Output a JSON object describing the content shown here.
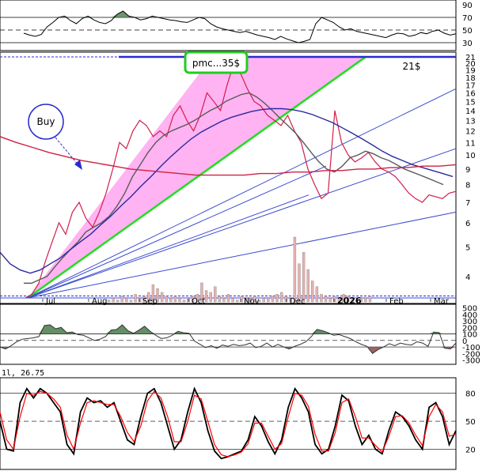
{
  "annotations": {
    "buy_label": "Buy",
    "target_label": "pmc...35$",
    "level_label": "21$",
    "stoch_label": "1l, 26.75"
  },
  "chart_data": [
    {
      "type": "line",
      "panel": "rsi",
      "y_ticks": [
        30,
        50,
        70,
        90
      ],
      "ylim": [
        20,
        95
      ],
      "reference_lines": [
        30,
        50,
        70
      ],
      "values": [
        45,
        42,
        40,
        43,
        55,
        62,
        70,
        72,
        65,
        60,
        68,
        72,
        66,
        62,
        60,
        65,
        75,
        80,
        72,
        70,
        66,
        68,
        72,
        70,
        68,
        66,
        65,
        63,
        62,
        66,
        70,
        68,
        60,
        55,
        52,
        50,
        48,
        46,
        48,
        45,
        42,
        40,
        38,
        35,
        40,
        36,
        33,
        30,
        32,
        35,
        60,
        70,
        66,
        62,
        55,
        50,
        52,
        48,
        46,
        44,
        42,
        40,
        38,
        42,
        45,
        44,
        40,
        42,
        46,
        44,
        48,
        50,
        45,
        42,
        44
      ]
    },
    {
      "type": "line",
      "panel": "price",
      "scale": "log",
      "y_ticks": [
        4,
        5,
        6,
        7,
        8,
        9,
        10,
        11,
        12,
        13,
        14,
        15,
        16,
        17,
        18,
        19,
        20,
        21
      ],
      "ylim": [
        3.3,
        21.5
      ],
      "x_labels": [
        "Jul",
        "Aug",
        "Sep",
        "Oct",
        "Nov",
        "Dec",
        "2026",
        "Feb",
        "Mar"
      ],
      "series": [
        {
          "color": "#d21e4b",
          "values": [
            3.4,
            3.5,
            3.8,
            4.5,
            5.2,
            6.0,
            5.5,
            6.5,
            7.0,
            6.2,
            5.8,
            6.5,
            7.5,
            9.0,
            11.0,
            10.5,
            12.0,
            13.0,
            12.5,
            11.5,
            12.0,
            11.5,
            13.5,
            14.5,
            13.0,
            12.0,
            13.5,
            16.0,
            15.0,
            14.0,
            17.0,
            20.0,
            18.5,
            16.5,
            15.0,
            14.5,
            13.5,
            13.0,
            12.5,
            13.5,
            12.0,
            11.0,
            9.0,
            8.0,
            7.2,
            7.5,
            14.0,
            11.0,
            10.0,
            9.5,
            9.8,
            10.2,
            9.5,
            9.0,
            8.8,
            8.5,
            8.0,
            7.5,
            7.2,
            7.0,
            7.4,
            7.3,
            7.2,
            7.5,
            7.6
          ]
        },
        {
          "color": "#5a5a5a",
          "values": [
            3.8,
            3.8,
            3.9,
            4.0,
            4.3,
            4.6,
            4.9,
            5.2,
            5.6,
            5.8,
            6.0,
            6.3,
            6.8,
            7.5,
            8.5,
            9.3,
            10.2,
            11.0,
            11.6,
            12.0,
            12.3,
            12.6,
            13.0,
            13.5,
            14.0,
            14.4,
            15.0,
            15.4,
            15.8,
            16.0,
            15.5,
            14.8,
            14.0,
            13.2,
            12.5,
            11.8,
            11.0,
            10.2,
            9.5,
            9.0,
            8.8,
            9.2,
            9.8,
            10.0,
            10.3,
            10.1,
            9.8,
            9.6,
            9.3,
            9.0,
            8.8,
            8.6,
            8.4,
            8.2,
            8.0
          ]
        },
        {
          "color": "#2a2aa0",
          "values": [
            4.8,
            4.4,
            4.2,
            4.1,
            4.2,
            4.4,
            4.6,
            4.9,
            5.2,
            5.5,
            5.9,
            6.3,
            6.8,
            7.3,
            7.9,
            8.5,
            9.2,
            9.9,
            10.6,
            11.3,
            11.9,
            12.4,
            12.9,
            13.3,
            13.6,
            13.9,
            14.1,
            14.2,
            14.2,
            14.1,
            13.9,
            13.6,
            13.2,
            12.8,
            12.3,
            11.8,
            11.3,
            10.8,
            10.3,
            9.9,
            9.6,
            9.3,
            9.1,
            8.9,
            8.7,
            8.5
          ]
        },
        {
          "color": "#cc2244",
          "values": [
            11.5,
            11.0,
            10.6,
            10.2,
            9.9,
            9.6,
            9.4,
            9.2,
            9.0,
            8.9,
            8.8,
            8.7,
            8.6,
            8.6,
            8.6,
            8.6,
            8.7,
            8.7,
            8.8,
            8.8,
            8.9,
            8.9,
            9.0,
            9.0,
            9.1,
            9.1,
            9.2,
            9.2,
            9.3
          ]
        }
      ]
    },
    {
      "type": "bar",
      "panel": "volume",
      "values": [
        0.1,
        0.2,
        0.1,
        0.3,
        0.2,
        0.1,
        0.4,
        0.2,
        0.3,
        0.5,
        0.9,
        0.7,
        0.5,
        0.3,
        0.2,
        0.3,
        0.2,
        0.1,
        0.2,
        0.3,
        0.4,
        1.0,
        0.6,
        0.5,
        0.8,
        0.3,
        0.2,
        0.4,
        0.2,
        0.1,
        0.3,
        0.2,
        0.2,
        0.3,
        0.1,
        0.2,
        0.2,
        0.3,
        0.4,
        0.5,
        0.3,
        0.2,
        3.4,
        2.0,
        2.6,
        1.7,
        1.1,
        0.8,
        0.4,
        0.3,
        0.2,
        0.3,
        0.2,
        0.4,
        0.3,
        0.2,
        0.1,
        0.2,
        0.2,
        0.3
      ]
    },
    {
      "type": "area",
      "panel": "cci",
      "y_ticks": [
        500,
        400,
        300,
        200,
        100,
        0,
        -100,
        -200,
        -300
      ],
      "ylim": [
        -330,
        520
      ],
      "reference_lines": [
        100,
        0,
        -100
      ],
      "values": [
        -100,
        -130,
        -80,
        -20,
        20,
        30,
        40,
        60,
        230,
        240,
        180,
        200,
        120,
        130,
        90,
        80,
        40,
        0,
        20,
        60,
        160,
        170,
        240,
        150,
        110,
        160,
        220,
        140,
        80,
        30,
        40,
        80,
        140,
        120,
        110,
        -10,
        -60,
        -110,
        -80,
        -120,
        -70,
        -90,
        -60,
        -80,
        -70,
        -40,
        -110,
        -90,
        -40,
        -100,
        -60,
        -100,
        -130,
        -90,
        -60,
        -20,
        60,
        170,
        150,
        120,
        80,
        90,
        60,
        30,
        -20,
        -60,
        -90,
        -200,
        -140,
        -100,
        -50,
        -80,
        -40,
        -60,
        -70,
        -20,
        -40,
        -90,
        130,
        120,
        -120,
        -130,
        -40
      ]
    },
    {
      "type": "line",
      "panel": "stochastic",
      "y_ticks": [
        20,
        50,
        80
      ],
      "ylim": [
        0,
        95
      ],
      "reference_lines": [
        20,
        50,
        80
      ],
      "series": [
        {
          "color": "#000000",
          "values": [
            50,
            20,
            18,
            70,
            85,
            75,
            85,
            80,
            70,
            60,
            25,
            15,
            60,
            75,
            70,
            72,
            65,
            70,
            50,
            30,
            25,
            55,
            80,
            85,
            70,
            45,
            20,
            30,
            60,
            85,
            70,
            40,
            18,
            10,
            12,
            15,
            18,
            30,
            55,
            45,
            28,
            15,
            30,
            65,
            85,
            75,
            60,
            25,
            15,
            20,
            45,
            78,
            72,
            45,
            25,
            35,
            20,
            15,
            40,
            60,
            55,
            45,
            30,
            20,
            65,
            70,
            55,
            25,
            40
          ]
        },
        {
          "color": "#ff0000",
          "values": [
            60,
            30,
            20,
            55,
            80,
            78,
            82,
            80,
            74,
            65,
            35,
            20,
            48,
            70,
            72,
            70,
            68,
            68,
            55,
            38,
            28,
            45,
            72,
            82,
            75,
            55,
            28,
            28,
            50,
            78,
            74,
            50,
            25,
            14,
            12,
            14,
            17,
            26,
            48,
            48,
            34,
            20,
            26,
            55,
            80,
            78,
            66,
            36,
            18,
            18,
            38,
            70,
            74,
            55,
            32,
            32,
            24,
            17,
            34,
            55,
            56,
            48,
            35,
            24,
            55,
            68,
            60,
            34,
            36
          ]
        }
      ]
    }
  ]
}
